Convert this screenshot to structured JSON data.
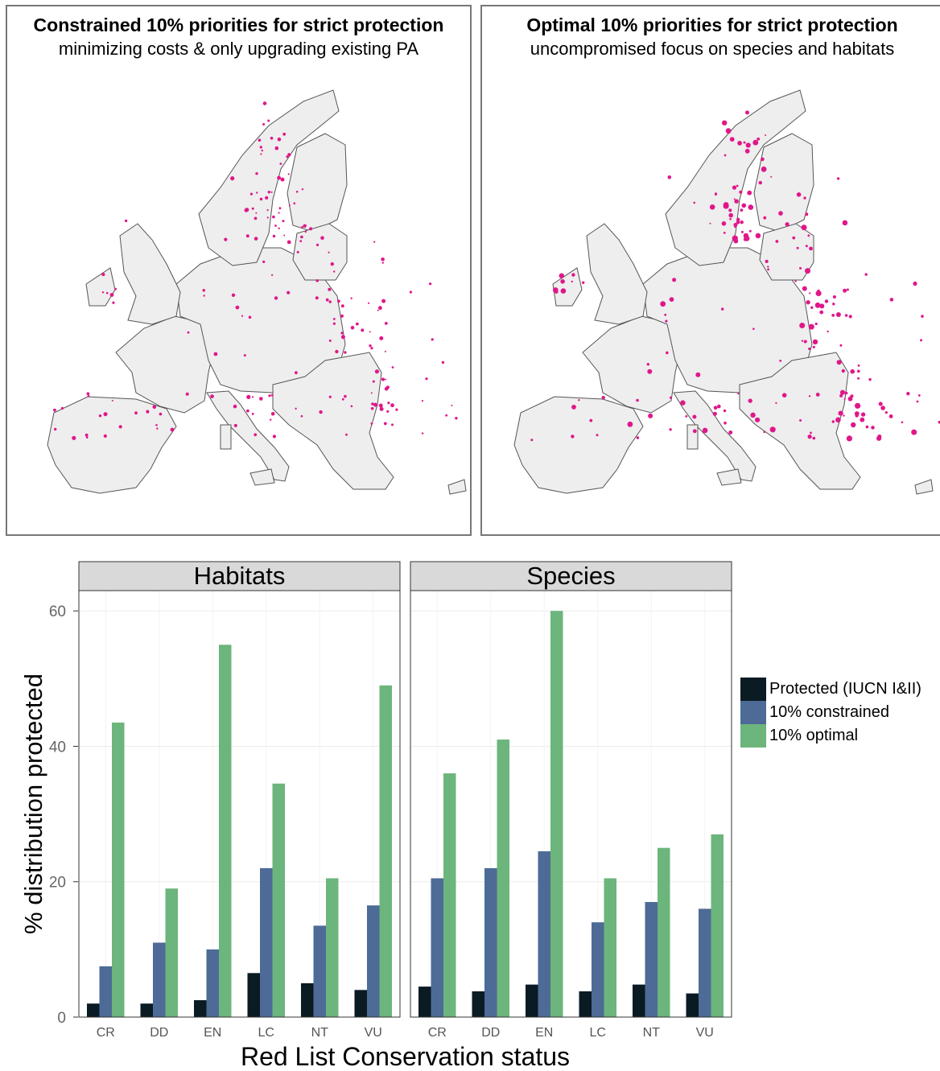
{
  "maps": [
    {
      "title": "Constrained 10% priorities for strict protection",
      "subtitle": "minimizing costs & only upgrading existing PA"
    },
    {
      "title": "Optimal 10% priorities for strict protection",
      "subtitle": "uncompromised focus on species and habitats"
    }
  ],
  "colors": {
    "protected": "#0b1b23",
    "constrained": "#4d6b96",
    "optimal": "#6cb57c",
    "priority": "#e0178a",
    "land": "#eeeeee",
    "border": "#555555",
    "strip": "#d9d9d9"
  },
  "chart_data": {
    "type": "bar",
    "facets": [
      "Habitats",
      "Species"
    ],
    "categories": [
      "CR",
      "DD",
      "EN",
      "LC",
      "NT",
      "VU"
    ],
    "series": [
      {
        "name": "Protected (IUCN I&II)",
        "values": {
          "Habitats": [
            2,
            2,
            2.5,
            6.5,
            5,
            4
          ],
          "Species": [
            4.5,
            3.8,
            4.8,
            3.8,
            4.8,
            3.5
          ]
        }
      },
      {
        "name": "10% constrained",
        "values": {
          "Habitats": [
            7.5,
            11,
            10,
            22,
            13.5,
            16.5
          ],
          "Species": [
            20.5,
            22,
            24.5,
            14,
            17,
            16
          ]
        }
      },
      {
        "name": "10% optimal",
        "values": {
          "Habitats": [
            43.5,
            19,
            55,
            34.5,
            20.5,
            49
          ],
          "Species": [
            36,
            41,
            60,
            20.5,
            25,
            27
          ]
        }
      }
    ],
    "ylabel": "% distribution protected",
    "xlabel": "Red List Conservation status",
    "ylim": [
      0,
      63
    ],
    "yticks": [
      0,
      20,
      40,
      60
    ],
    "legend_position": "right"
  }
}
